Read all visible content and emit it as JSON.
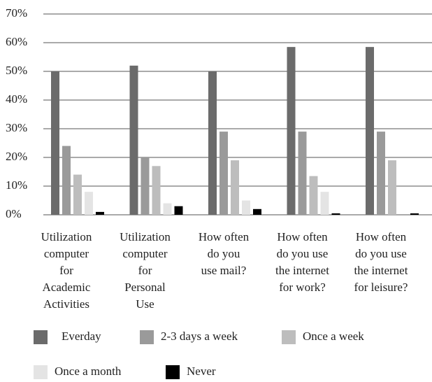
{
  "chart_data": {
    "type": "bar",
    "categories": [
      [
        "Utilization",
        "computer",
        "for",
        "Academic",
        "Activities"
      ],
      [
        "Utilization",
        "computer",
        "for",
        "Personal",
        "Use"
      ],
      [
        "How often",
        "do you",
        "use mail?"
      ],
      [
        "How often",
        "do you use",
        "the internet",
        "for work?"
      ],
      [
        "How often",
        "do you use",
        "the internet",
        "for leisure?"
      ]
    ],
    "series": [
      {
        "name": "Everday",
        "color": "#6b6b6b",
        "values": [
          50,
          52,
          50,
          58.5,
          58.5
        ]
      },
      {
        "name": "2-3 days a week",
        "color": "#9a9a9a",
        "values": [
          24,
          20,
          29,
          29,
          29
        ]
      },
      {
        "name": "Once a week",
        "color": "#bdbdbd",
        "values": [
          14,
          17,
          19,
          13.5,
          19
        ]
      },
      {
        "name": "Once a month",
        "color": "#e4e4e4",
        "values": [
          8,
          4,
          5,
          8,
          0
        ]
      },
      {
        "name": "Never",
        "color": "#000000",
        "values": [
          1,
          3,
          2,
          0.5,
          0.5
        ]
      }
    ],
    "ylim": [
      0,
      70
    ],
    "yticks": [
      {
        "value": 0,
        "label": "0%"
      },
      {
        "value": 10,
        "label": "10%"
      },
      {
        "value": 20,
        "label": "20%"
      },
      {
        "value": 30,
        "label": "30%"
      },
      {
        "value": 40,
        "label": "40%"
      },
      {
        "value": 50,
        "label": "50%"
      },
      {
        "value": 60,
        "label": "60%"
      },
      {
        "value": 70,
        "label": "70%"
      }
    ],
    "grid": true
  }
}
